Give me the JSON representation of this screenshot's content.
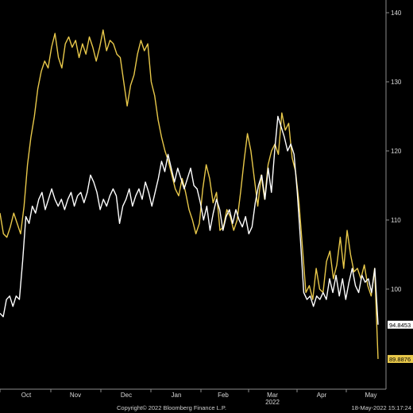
{
  "chart_data": {
    "type": "line",
    "title": "",
    "xlabel": "",
    "ylabel": "",
    "ylim": [
      90,
      140
    ],
    "yticks": [
      100,
      110,
      120,
      130,
      140
    ],
    "x_tick_labels": [
      "Oct",
      "Nov",
      "Dec",
      "Jan",
      "Feb",
      "Mar",
      "Apr",
      "May"
    ],
    "x_sublabel": "2022",
    "grid": false,
    "legend": "none",
    "colors": {
      "background": "#000000",
      "series_a": "#ffffff",
      "series_b": "#e8c84a",
      "axis": "#8c8c8c",
      "last_value_b_bg": "#e8c84a",
      "last_value_a_bg": "#ffffff"
    },
    "series": [
      {
        "key": "white",
        "color": "#ffffff",
        "last_value_label": "94.8453",
        "values": [
          96.5,
          96,
          98.5,
          99,
          97.5,
          99,
          98.5,
          104,
          110.5,
          109.5,
          112,
          111,
          113,
          114,
          111.5,
          113,
          114.5,
          113,
          112,
          113,
          111.5,
          113,
          114,
          112,
          113.5,
          114,
          112.5,
          114,
          116.5,
          115.5,
          114,
          111.5,
          113,
          112,
          113.5,
          114.5,
          113.5,
          109.5,
          112,
          113,
          114.5,
          112,
          113.5,
          114.5,
          113,
          115.5,
          114,
          112,
          114,
          116,
          118.5,
          117,
          119.5,
          117.5,
          115.5,
          117.5,
          116,
          114.5,
          116,
          117.5,
          115,
          114.5,
          112.5,
          110,
          112,
          108.5,
          111,
          113,
          111.5,
          108.5,
          110.5,
          111.5,
          109.5,
          111.5,
          110,
          109,
          110.5,
          108,
          109,
          112.5,
          115,
          116.5,
          113,
          117.5,
          114,
          120,
          125,
          123.5,
          122,
          120,
          121,
          119.5,
          114,
          107,
          99.5,
          98.5,
          99,
          97.5,
          99,
          98.5,
          99.5,
          98.5,
          101.5,
          99.5,
          102,
          99,
          101.5,
          98.5,
          101,
          103,
          100.5,
          99.5,
          102,
          101,
          101.5,
          99.5,
          103,
          94.85
        ]
      },
      {
        "key": "yellow",
        "color": "#e8c84a",
        "last_value_label": "89.8876",
        "values": [
          111,
          108,
          107.5,
          109,
          111,
          109.5,
          108,
          112,
          118,
          122,
          125,
          129,
          131.5,
          133,
          132,
          135,
          137,
          133.5,
          132,
          135.5,
          136.5,
          135,
          136,
          133.5,
          135.5,
          134,
          136.5,
          135,
          133,
          135,
          137.5,
          134.5,
          136,
          135.5,
          134,
          133.5,
          130,
          126.5,
          129.5,
          131,
          134,
          136,
          134.5,
          135.5,
          130,
          128,
          124.5,
          122,
          120,
          118.5,
          116.5,
          114.5,
          113.5,
          116,
          114,
          111.5,
          110,
          108,
          109.5,
          114.5,
          118,
          116,
          112.5,
          114,
          108.5,
          109,
          111.5,
          110.5,
          108.5,
          110,
          114,
          118.5,
          122.5,
          120,
          116,
          112,
          116.5,
          113,
          118,
          120,
          121,
          119.5,
          125.5,
          123,
          124,
          119,
          117,
          112.5,
          106,
          99.5,
          100.5,
          98.5,
          103,
          100,
          99.5,
          104,
          105.5,
          101.5,
          103.5,
          107.5,
          103,
          108.5,
          105,
          102.5,
          103,
          101.5,
          103.5,
          100.5,
          99,
          103,
          89.89
        ]
      }
    ]
  },
  "footer": {
    "copyright": "Copyright© 2022 Bloomberg Finance L.P.",
    "timestamp": "18-May-2022 15:17:24"
  }
}
